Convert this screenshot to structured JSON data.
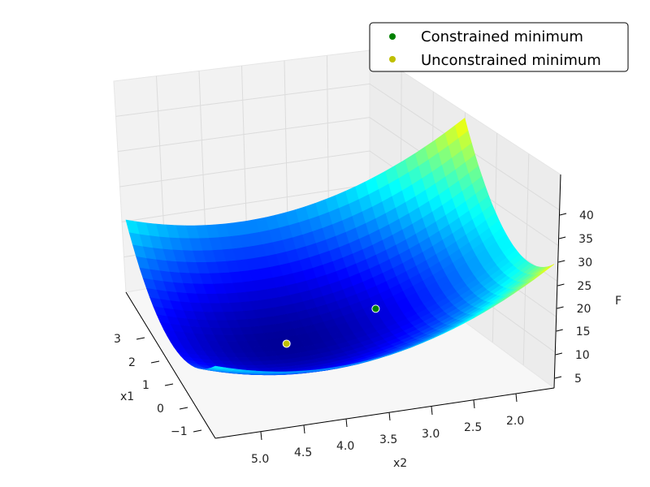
{
  "chart_data": {
    "type": "surface3d",
    "title": "",
    "xlabel": "x1",
    "ylabel": "x2",
    "zlabel": "F",
    "x1_ticks": [
      "−1",
      "0",
      "1",
      "2",
      "3"
    ],
    "x2_ticks": [
      "5.0",
      "4.5",
      "4.0",
      "3.5",
      "3.0",
      "2.5",
      "2.0"
    ],
    "z_ticks": [
      "5",
      "10",
      "15",
      "20",
      "25",
      "30",
      "35",
      "40"
    ],
    "x1_range": [
      -1.5,
      3.5
    ],
    "x2_range": [
      1.5,
      5.3
    ],
    "z_range": [
      0,
      45
    ],
    "colormap": "jet",
    "grid": true,
    "legend_position": "top-right",
    "series": [
      {
        "name": "Constrained minimum",
        "color": "#008000",
        "x1": 1.0,
        "x2": 3.0,
        "F": 6.0
      },
      {
        "name": "Unconstrained minimum",
        "color": "#bfbf00",
        "x1": 1.0,
        "x2": 4.0,
        "F": 1.0
      }
    ]
  }
}
